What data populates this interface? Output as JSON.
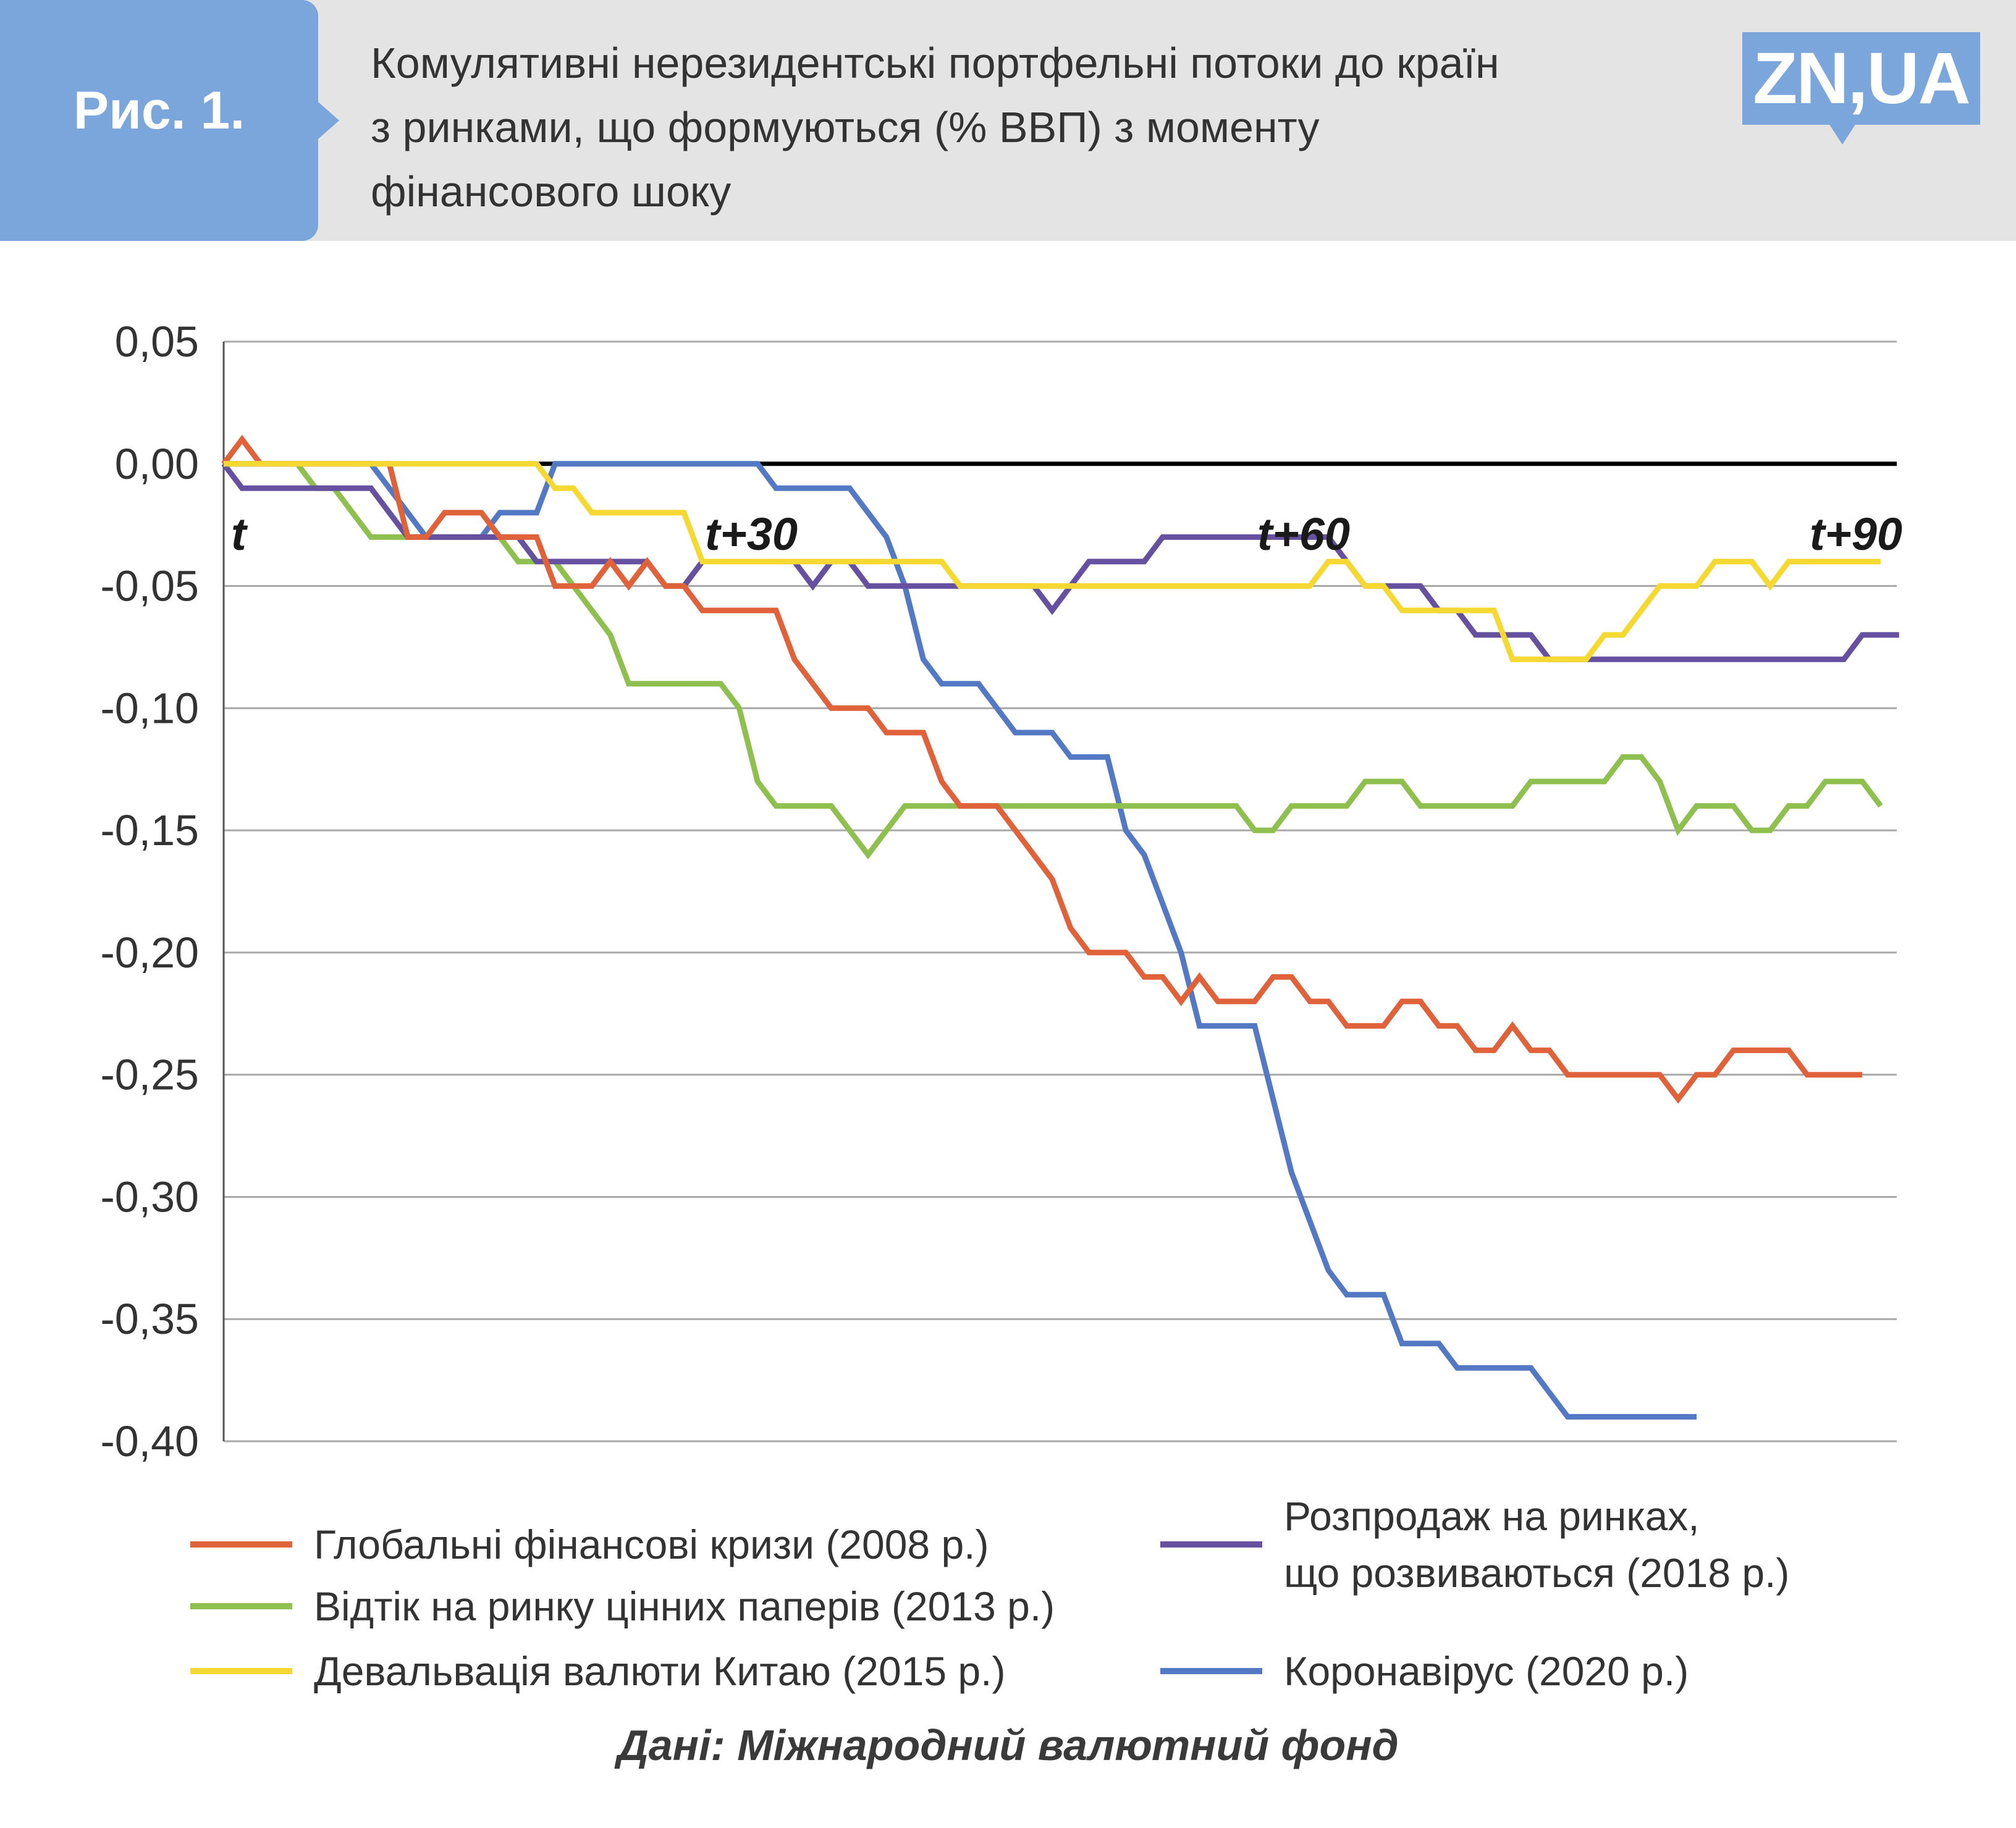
{
  "header": {
    "figure_label": "Рис. 1.",
    "title_lines": [
      "Комулятивні нерезидентські портфельні потоки до країн",
      "з ринками, що формуються (% ВВП) з моменту",
      "фінансового шоку"
    ],
    "logo_text": "ZN,UA"
  },
  "source": "Дані: Міжнародний валютний фонд",
  "chart_data": {
    "type": "line",
    "title": "Комулятивні нерезидентські портфельні потоки до країн з ринками, що формуються (% ВВП) з моменту фінансового шоку",
    "xlabel": "",
    "ylabel": "",
    "ylim": [
      -0.4,
      0.05
    ],
    "xlim": [
      0,
      92
    ],
    "y_ticks": [
      0.05,
      0.0,
      -0.05,
      -0.1,
      -0.15,
      -0.2,
      -0.25,
      -0.3,
      -0.35,
      -0.4
    ],
    "y_tick_labels": [
      "0,05",
      "0,00",
      "-0,05",
      "-0,10",
      "-0,15",
      "-0,20",
      "-0,25",
      "-0,30",
      "-0,35",
      "-0,40"
    ],
    "x_tick_labels": [
      {
        "x": 0,
        "label": "t"
      },
      {
        "x": 30,
        "label": "t+30"
      },
      {
        "x": 60,
        "label": "t+60"
      },
      {
        "x": 90,
        "label": "t+90"
      }
    ],
    "grid": true,
    "legend_position": "bottom",
    "series": [
      {
        "name": "Глобальні фінансові кризи (2008 р.)",
        "color": "#e0623a",
        "values": [
          0,
          0.01,
          0,
          0,
          0,
          0,
          0,
          0,
          0,
          0,
          -0.03,
          -0.03,
          -0.02,
          -0.02,
          -0.02,
          -0.03,
          -0.03,
          -0.03,
          -0.05,
          -0.05,
          -0.05,
          -0.04,
          -0.05,
          -0.04,
          -0.05,
          -0.05,
          -0.06,
          -0.06,
          -0.06,
          -0.06,
          -0.06,
          -0.08,
          -0.09,
          -0.1,
          -0.1,
          -0.1,
          -0.11,
          -0.11,
          -0.11,
          -0.13,
          -0.14,
          -0.14,
          -0.14,
          -0.15,
          -0.16,
          -0.17,
          -0.19,
          -0.2,
          -0.2,
          -0.2,
          -0.21,
          -0.21,
          -0.22,
          -0.21,
          -0.22,
          -0.22,
          -0.22,
          -0.21,
          -0.21,
          -0.22,
          -0.22,
          -0.23,
          -0.23,
          -0.23,
          -0.22,
          -0.22,
          -0.23,
          -0.23,
          -0.24,
          -0.24,
          -0.23,
          -0.24,
          -0.24,
          -0.25,
          -0.25,
          -0.25,
          -0.25,
          -0.25,
          -0.25,
          -0.26,
          -0.25,
          -0.25,
          -0.24,
          -0.24,
          -0.24,
          -0.24,
          -0.25,
          -0.25,
          -0.25,
          -0.25
        ]
      },
      {
        "name": "Відтік на ринку цінних паперів (2013 р.)",
        "color": "#8fc04f",
        "values": [
          0,
          0,
          0,
          0,
          0,
          -0.01,
          -0.01,
          -0.02,
          -0.03,
          -0.03,
          -0.03,
          -0.03,
          -0.03,
          -0.03,
          -0.03,
          -0.03,
          -0.04,
          -0.04,
          -0.04,
          -0.05,
          -0.06,
          -0.07,
          -0.09,
          -0.09,
          -0.09,
          -0.09,
          -0.09,
          -0.09,
          -0.1,
          -0.13,
          -0.14,
          -0.14,
          -0.14,
          -0.14,
          -0.15,
          -0.16,
          -0.15,
          -0.14,
          -0.14,
          -0.14,
          -0.14,
          -0.14,
          -0.14,
          -0.14,
          -0.14,
          -0.14,
          -0.14,
          -0.14,
          -0.14,
          -0.14,
          -0.14,
          -0.14,
          -0.14,
          -0.14,
          -0.14,
          -0.14,
          -0.15,
          -0.15,
          -0.14,
          -0.14,
          -0.14,
          -0.14,
          -0.13,
          -0.13,
          -0.13,
          -0.14,
          -0.14,
          -0.14,
          -0.14,
          -0.14,
          -0.14,
          -0.13,
          -0.13,
          -0.13,
          -0.13,
          -0.13,
          -0.12,
          -0.12,
          -0.13,
          -0.15,
          -0.14,
          -0.14,
          -0.14,
          -0.15,
          -0.15,
          -0.14,
          -0.14,
          -0.13,
          -0.13,
          -0.13,
          -0.14
        ]
      },
      {
        "name": "Девальвація валюти Китаю (2015 р.)",
        "color": "#f5d832",
        "values": [
          0,
          0,
          0,
          0,
          0,
          0,
          0,
          0,
          0,
          0,
          0,
          0,
          0,
          0,
          0,
          0,
          0,
          0,
          -0.01,
          -0.01,
          -0.02,
          -0.02,
          -0.02,
          -0.02,
          -0.02,
          -0.02,
          -0.04,
          -0.04,
          -0.04,
          -0.04,
          -0.04,
          -0.04,
          -0.04,
          -0.04,
          -0.04,
          -0.04,
          -0.04,
          -0.04,
          -0.04,
          -0.04,
          -0.05,
          -0.05,
          -0.05,
          -0.05,
          -0.05,
          -0.05,
          -0.05,
          -0.05,
          -0.05,
          -0.05,
          -0.05,
          -0.05,
          -0.05,
          -0.05,
          -0.05,
          -0.05,
          -0.05,
          -0.05,
          -0.05,
          -0.05,
          -0.04,
          -0.04,
          -0.05,
          -0.05,
          -0.06,
          -0.06,
          -0.06,
          -0.06,
          -0.06,
          -0.06,
          -0.08,
          -0.08,
          -0.08,
          -0.08,
          -0.08,
          -0.07,
          -0.07,
          -0.06,
          -0.05,
          -0.05,
          -0.05,
          -0.04,
          -0.04,
          -0.04,
          -0.05,
          -0.04,
          -0.04,
          -0.04,
          -0.04,
          -0.04,
          -0.04
        ]
      },
      {
        "name": "Розпродаж на ринках, що розвиваються (2018 р.)",
        "color": "#6650a0",
        "values": [
          0,
          -0.01,
          -0.01,
          -0.01,
          -0.01,
          -0.01,
          -0.01,
          -0.01,
          -0.01,
          -0.02,
          -0.03,
          -0.03,
          -0.03,
          -0.03,
          -0.03,
          -0.03,
          -0.03,
          -0.04,
          -0.04,
          -0.04,
          -0.04,
          -0.04,
          -0.04,
          -0.04,
          -0.05,
          -0.05,
          -0.04,
          -0.04,
          -0.04,
          -0.04,
          -0.04,
          -0.04,
          -0.05,
          -0.04,
          -0.04,
          -0.05,
          -0.05,
          -0.05,
          -0.05,
          -0.05,
          -0.05,
          -0.05,
          -0.05,
          -0.05,
          -0.05,
          -0.06,
          -0.05,
          -0.04,
          -0.04,
          -0.04,
          -0.04,
          -0.03,
          -0.03,
          -0.03,
          -0.03,
          -0.03,
          -0.03,
          -0.03,
          -0.03,
          -0.03,
          -0.03,
          -0.04,
          -0.05,
          -0.05,
          -0.05,
          -0.05,
          -0.06,
          -0.06,
          -0.07,
          -0.07,
          -0.07,
          -0.07,
          -0.08,
          -0.08,
          -0.08,
          -0.08,
          -0.08,
          -0.08,
          -0.08,
          -0.08,
          -0.08,
          -0.08,
          -0.08,
          -0.08,
          -0.08,
          -0.08,
          -0.08,
          -0.08,
          -0.08,
          -0.07,
          -0.07,
          -0.07
        ]
      },
      {
        "name": "Коронавірус (2020 р.)",
        "color": "#5479c4",
        "values": [
          0,
          0,
          0,
          0,
          0,
          0,
          0,
          0,
          0,
          -0.01,
          -0.02,
          -0.03,
          -0.03,
          -0.03,
          -0.03,
          -0.02,
          -0.02,
          -0.02,
          0,
          0,
          0,
          0,
          0,
          0,
          0,
          0,
          0,
          0,
          0,
          0,
          -0.01,
          -0.01,
          -0.01,
          -0.01,
          -0.01,
          -0.02,
          -0.03,
          -0.05,
          -0.08,
          -0.09,
          -0.09,
          -0.09,
          -0.1,
          -0.11,
          -0.11,
          -0.11,
          -0.12,
          -0.12,
          -0.12,
          -0.15,
          -0.16,
          -0.18,
          -0.2,
          -0.23,
          -0.23,
          -0.23,
          -0.23,
          -0.26,
          -0.29,
          -0.31,
          -0.33,
          -0.34,
          -0.34,
          -0.34,
          -0.36,
          -0.36,
          -0.36,
          -0.37,
          -0.37,
          -0.37,
          -0.37,
          -0.37,
          -0.38,
          -0.39,
          -0.39,
          -0.39,
          -0.39,
          -0.39,
          -0.39,
          -0.39,
          -0.39
        ]
      }
    ]
  },
  "legend": {
    "items": [
      {
        "lines": [
          "Глобальні фінансові кризи (2008 р.)"
        ],
        "color": "#e0623a"
      },
      {
        "lines": [
          "Відтік на ринку цінних паперів (2013 р.)"
        ],
        "color": "#8fc04f"
      },
      {
        "lines": [
          "Девальвація валюти Китаю (2015 р.)"
        ],
        "color": "#f5d832"
      },
      {
        "lines": [
          "Розпродаж на ринках,",
          "що розвиваються (2018 р.)"
        ],
        "color": "#6650a0"
      },
      {
        "lines": [
          "Коронавірус (2020 р.)"
        ],
        "color": "#5479c4"
      }
    ]
  }
}
